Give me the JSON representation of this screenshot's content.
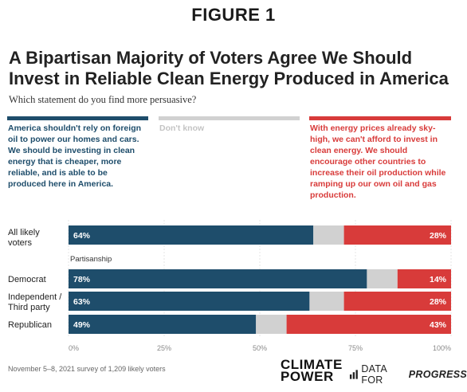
{
  "figure_label": "FIGURE 1",
  "colors": {
    "yes": "#1e4d6b",
    "dont_know": "#d1d1d1",
    "no": "#d83b3a"
  },
  "chart_data": {
    "type": "bar",
    "orientation": "horizontal",
    "stacked": true,
    "title": "A Bipartisan Majority of Voters Agree We Should Invest in Reliable Clean Energy Produced in America",
    "subtitle": "Which statement do you find more persuasive?",
    "legend": [
      {
        "key": "clean",
        "text": "America shouldn't rely on foreign oil to power our homes and cars. We should be investing in clean energy that is cheaper, more reliable, and is able to be produced here in America."
      },
      {
        "key": "dont_know",
        "text": "Don't know"
      },
      {
        "key": "oil",
        "text": "With energy prices already sky-high, we can't afford to invest in clean energy. We should encourage other countries to increase their oil production while ramping up our own oil and gas production."
      }
    ],
    "group_label": "Partisanship",
    "categories": [
      "All likely voters",
      "Democrat",
      "Independent / Third party",
      "Republican"
    ],
    "series": [
      {
        "key": "clean",
        "values": [
          64,
          78,
          63,
          49
        ],
        "labels": [
          "64%",
          "78%",
          "63%",
          "49%"
        ]
      },
      {
        "key": "dont_know",
        "values": [
          8,
          8,
          9,
          8
        ]
      },
      {
        "key": "oil",
        "values": [
          28,
          14,
          28,
          43
        ],
        "labels": [
          "28%",
          "14%",
          "28%",
          "43%"
        ]
      }
    ],
    "x_ticks": [
      "0%",
      "25%",
      "50%",
      "75%",
      "100%"
    ],
    "xlim": [
      0,
      100
    ]
  },
  "footer": {
    "source": "November 5–8, 2021 survey of 1,209 likely voters",
    "logo_climate_power": "CLIMATE\nPOWER",
    "logo_dfp_prefix": "DATA FOR ",
    "logo_dfp_bold": "PROGRESS"
  }
}
